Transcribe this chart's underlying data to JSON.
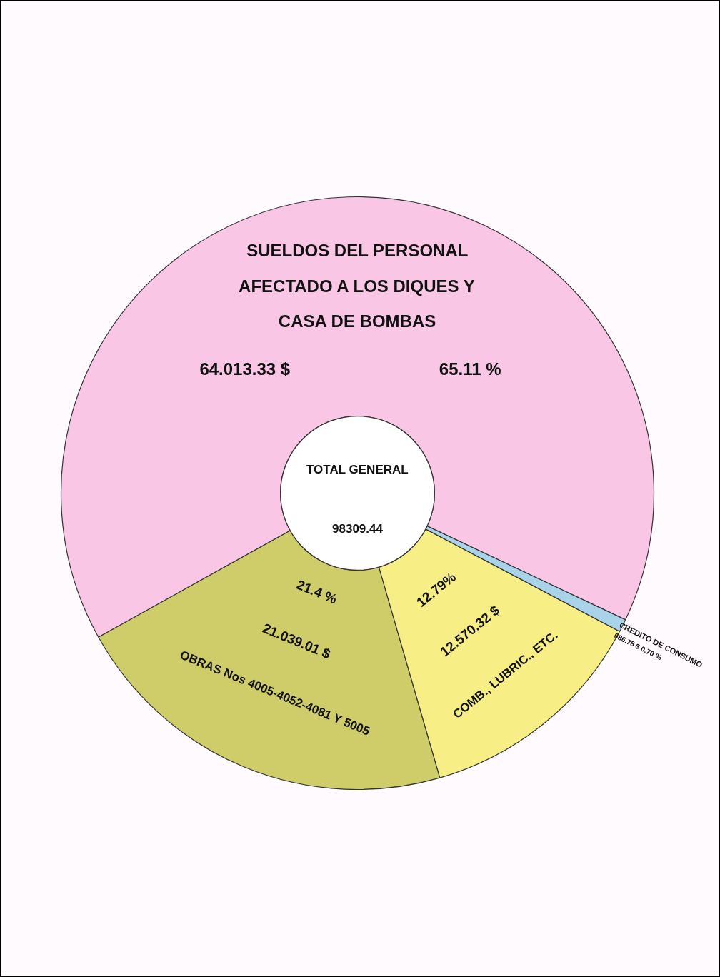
{
  "chart_data": {
    "type": "donut",
    "categories": [
      "SUELDOS DEL PERSONAL AFECTADO A LOS DIQUES Y CASA DE BOMBAS",
      "OBRAS Nos 4005-4052-4081 Y 5005",
      "COMB., LUBRIC., ETC.",
      "CREDITO DE CONSUMO"
    ],
    "values": [
      65.11,
      21.4,
      12.79,
      0.7
    ],
    "colors": [
      "#f9c6e6",
      "#cfcd6a",
      "#f7ef86",
      "#a9d3e8"
    ],
    "value_labels": [
      "65.11 %",
      "21.4 %",
      "12.79%",
      "0.70 %"
    ],
    "annotations": [
      "TOTAL GENERAL",
      "98309.44",
      "64.013.33 $",
      "21.039.01 $",
      "12.570.32 $",
      "686.78 $"
    ],
    "legend": false
  }
}
